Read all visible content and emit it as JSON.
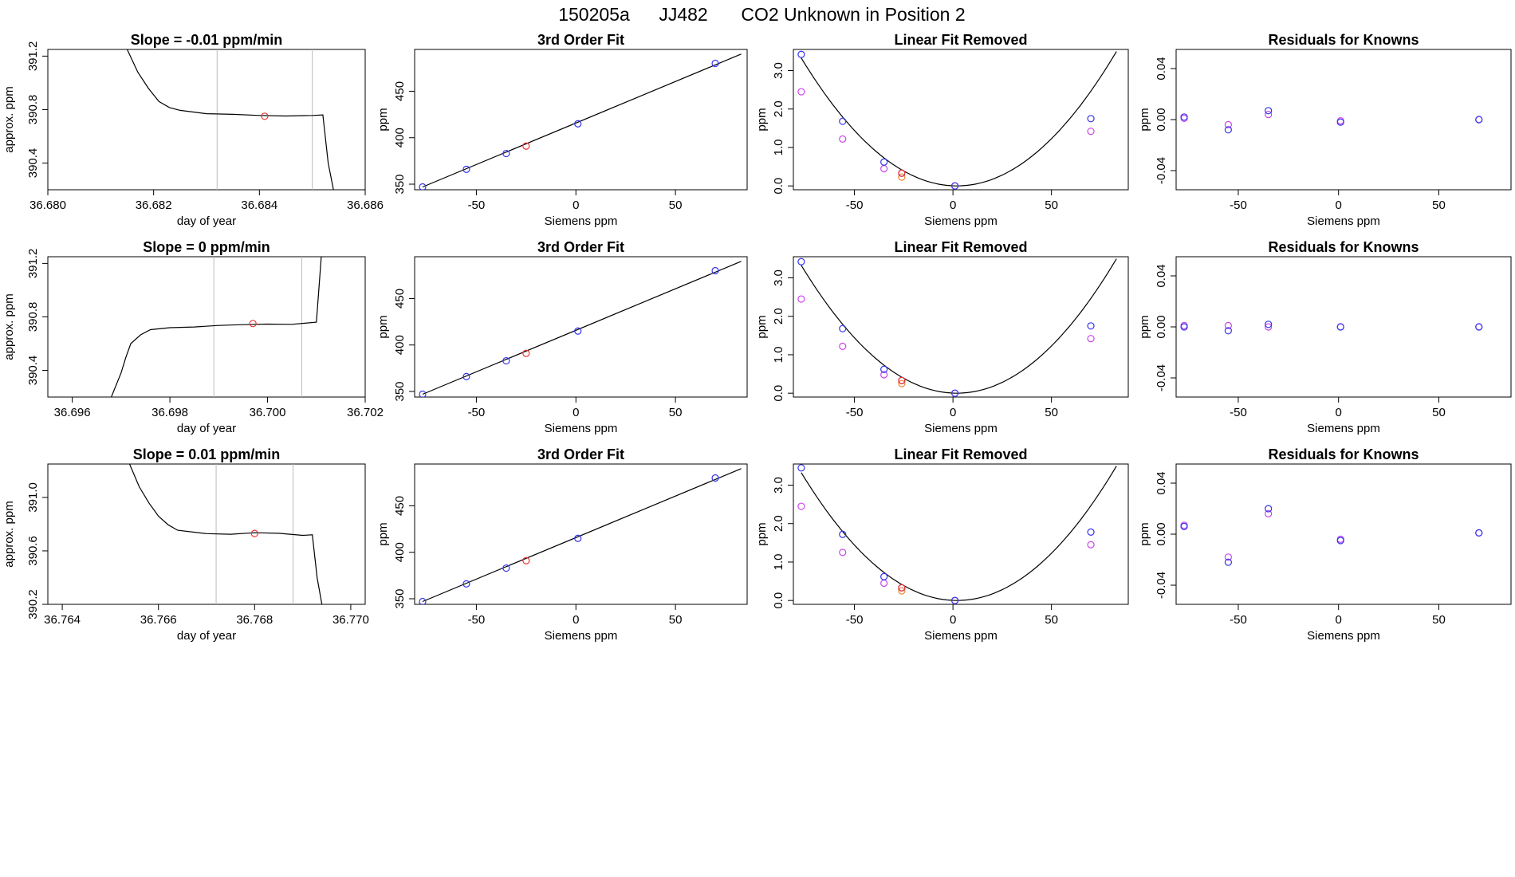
{
  "header": {
    "run_id": "150205a",
    "tank_id": "JJ482",
    "description": "CO2 Unknown in Position  2"
  },
  "colors": {
    "axis": "#000000",
    "curve": "#000000",
    "gridline": "#bbbbbb",
    "known_point": "#3333ee",
    "unknown_point": "#ee3333",
    "alt_known_point": "#cc44ee",
    "alt_unknown_point": "#ee8833"
  },
  "chart_data": [
    {
      "type": "line",
      "title": "Slope =  -0.01  ppm/min",
      "xlabel": "day of year",
      "ylabel": "approx. ppm",
      "xlim": [
        36.68,
        36.686
      ],
      "ylim": [
        390.2,
        391.25
      ],
      "xticks": [
        "36.680",
        "36.682",
        "36.684",
        "36.686"
      ],
      "yticks": [
        "390.4",
        "390.8",
        "391.2"
      ],
      "series": [
        {
          "x": [
            36.6815,
            36.6817,
            36.6819,
            36.6821,
            36.6823,
            36.6825,
            36.683,
            36.6835,
            36.684,
            36.6845,
            36.685,
            36.6852,
            36.6853,
            36.6854
          ],
          "values": [
            391.25,
            391.08,
            390.96,
            390.86,
            390.82,
            390.8,
            390.77,
            390.76,
            390.75,
            390.75,
            390.76,
            390.76,
            390.4,
            390.2
          ]
        }
      ],
      "vlines": [
        36.6832,
        36.685
      ],
      "marker": {
        "x": 36.6841,
        "y": 390.75
      }
    },
    {
      "type": "scatter",
      "title": "3rd Order Fit",
      "xlabel": "Siemens ppm",
      "ylabel": "ppm",
      "xlim": [
        -81,
        86
      ],
      "ylim": [
        344,
        495
      ],
      "xticks": [
        "-50",
        "0",
        "50"
      ],
      "yticks": [
        "350",
        "400",
        "450"
      ],
      "fit_line": {
        "x": [
          -77,
          83
        ],
        "values": [
          347,
          490
        ]
      },
      "known": {
        "x": [
          -77,
          -55,
          -35,
          1,
          70
        ],
        "values": [
          347,
          366,
          383,
          415,
          480
        ]
      },
      "unknown": {
        "x": [
          -25
        ],
        "values": [
          391
        ]
      }
    },
    {
      "type": "scatter",
      "title": "Linear Fit Removed",
      "xlabel": "Siemens ppm",
      "ylabel": "ppm",
      "xlim": [
        -81,
        89
      ],
      "ylim": [
        -0.1,
        3.55
      ],
      "xticks": [
        "-50",
        "0",
        "50"
      ],
      "yticks": [
        "0.0",
        "1.0",
        "2.0",
        "3.0"
      ],
      "fit_curve": {
        "a": 0.000533,
        "h": 2
      },
      "known": {
        "x": [
          -77,
          -56,
          -35,
          -26,
          1,
          70
        ],
        "values": [
          3.42,
          1.68,
          0.62,
          0.33,
          0.0,
          1.75
        ]
      },
      "alt_known": {
        "x": [
          -77,
          -56,
          -35,
          1,
          70
        ],
        "values": [
          2.45,
          1.22,
          0.45,
          0.0,
          1.42
        ]
      },
      "unknown": {
        "x": [
          -26
        ],
        "values": [
          0.33
        ]
      },
      "alt_unknown": {
        "x": [
          -26
        ],
        "values": [
          0.23
        ]
      }
    },
    {
      "type": "scatter",
      "title": "Residuals for Knowns",
      "xlabel": "Siemens ppm",
      "ylabel": "ppm",
      "xlim": [
        -81,
        86
      ],
      "ylim": [
        -0.055,
        0.055
      ],
      "xticks": [
        "-50",
        "0",
        "50"
      ],
      "yticks": [
        "-0.04",
        "0.00",
        "0.04"
      ],
      "known": {
        "x": [
          -77,
          -55,
          -35,
          1,
          70
        ],
        "values": [
          0.002,
          -0.008,
          0.007,
          -0.002,
          0.0
        ]
      },
      "alt_known": {
        "x": [
          -77,
          -55,
          -35,
          1,
          70
        ],
        "values": [
          0.001,
          -0.004,
          0.004,
          -0.001,
          0.0
        ]
      }
    },
    {
      "type": "line",
      "title": "Slope =  0  ppm/min",
      "xlabel": "day of year",
      "ylabel": "approx. ppm",
      "xlim": [
        36.6955,
        36.702
      ],
      "ylim": [
        390.2,
        391.25
      ],
      "xticks": [
        "36.696",
        "36.698",
        "36.700",
        "36.702"
      ],
      "yticks": [
        "390.4",
        "390.8",
        "391.2"
      ],
      "series": [
        {
          "x": [
            36.6968,
            36.697,
            36.6971,
            36.6972,
            36.6974,
            36.6976,
            36.698,
            36.6985,
            36.699,
            36.6995,
            36.7,
            36.7005,
            36.701,
            36.70105,
            36.7011
          ],
          "values": [
            390.2,
            390.38,
            390.5,
            390.6,
            390.67,
            390.71,
            390.72,
            390.72,
            390.73,
            390.74,
            390.75,
            390.75,
            390.76,
            391.0,
            391.25
          ]
        }
      ],
      "vlines": [
        36.6989,
        36.7007
      ],
      "marker": {
        "x": 36.6997,
        "y": 390.75
      }
    },
    {
      "type": "scatter",
      "title": "3rd Order Fit",
      "xlabel": "Siemens ppm",
      "ylabel": "ppm",
      "xlim": [
        -81,
        86
      ],
      "ylim": [
        344,
        495
      ],
      "xticks": [
        "-50",
        "0",
        "50"
      ],
      "yticks": [
        "350",
        "400",
        "450"
      ],
      "fit_line": {
        "x": [
          -77,
          83
        ],
        "values": [
          347,
          490
        ]
      },
      "known": {
        "x": [
          -77,
          -55,
          -35,
          1,
          70
        ],
        "values": [
          347,
          366,
          383,
          415,
          480
        ]
      },
      "unknown": {
        "x": [
          -25
        ],
        "values": [
          391
        ]
      }
    },
    {
      "type": "scatter",
      "title": "Linear Fit Removed",
      "xlabel": "Siemens ppm",
      "ylabel": "ppm",
      "xlim": [
        -81,
        89
      ],
      "ylim": [
        -0.1,
        3.55
      ],
      "xticks": [
        "-50",
        "0",
        "50"
      ],
      "yticks": [
        "0.0",
        "1.0",
        "2.0",
        "3.0"
      ],
      "fit_curve": {
        "a": 0.000533,
        "h": 2
      },
      "known": {
        "x": [
          -77,
          -56,
          -35,
          -26,
          1,
          70
        ],
        "values": [
          3.42,
          1.68,
          0.62,
          0.33,
          0.0,
          1.75
        ]
      },
      "alt_known": {
        "x": [
          -77,
          -56,
          -35,
          1,
          70
        ],
        "values": [
          2.45,
          1.22,
          0.48,
          0.0,
          1.42
        ]
      },
      "unknown": {
        "x": [
          -26
        ],
        "values": [
          0.33
        ]
      },
      "alt_unknown": {
        "x": [
          -26
        ],
        "values": [
          0.25
        ]
      }
    },
    {
      "type": "scatter",
      "title": "Residuals for Knowns",
      "xlabel": "Siemens ppm",
      "ylabel": "ppm",
      "xlim": [
        -81,
        86
      ],
      "ylim": [
        -0.055,
        0.055
      ],
      "xticks": [
        "-50",
        "0",
        "50"
      ],
      "yticks": [
        "-0.04",
        "0.00",
        "0.04"
      ],
      "known": {
        "x": [
          -77,
          -55,
          -35,
          1,
          70
        ],
        "values": [
          0.0,
          -0.003,
          0.002,
          0.0,
          0.0
        ]
      },
      "alt_known": {
        "x": [
          -77,
          -55,
          -35,
          1,
          70
        ],
        "values": [
          0.001,
          0.001,
          0.0,
          0.0,
          0.0
        ]
      }
    },
    {
      "type": "line",
      "title": "Slope =  0.01  ppm/min",
      "xlabel": "day of year",
      "ylabel": "approx. ppm",
      "xlim": [
        36.7637,
        36.7703
      ],
      "ylim": [
        390.2,
        391.25
      ],
      "xticks": [
        "36.764",
        "36.766",
        "36.768",
        "36.770"
      ],
      "yticks": [
        "390.2",
        "390.6",
        "391.0"
      ],
      "series": [
        {
          "x": [
            36.7654,
            36.7656,
            36.7658,
            36.766,
            36.7662,
            36.7664,
            36.767,
            36.7675,
            36.768,
            36.7685,
            36.769,
            36.7692,
            36.7693,
            36.7694
          ],
          "values": [
            391.25,
            391.08,
            390.96,
            390.86,
            390.8,
            390.76,
            390.73,
            390.72,
            390.73,
            390.73,
            390.72,
            390.72,
            390.4,
            390.2
          ]
        }
      ],
      "vlines": [
        36.7672,
        36.7688
      ],
      "marker": {
        "x": 36.768,
        "y": 390.73
      }
    },
    {
      "type": "scatter",
      "title": "3rd Order Fit",
      "xlabel": "Siemens ppm",
      "ylabel": "ppm",
      "xlim": [
        -81,
        86
      ],
      "ylim": [
        344,
        495
      ],
      "xticks": [
        "-50",
        "0",
        "50"
      ],
      "yticks": [
        "350",
        "400",
        "450"
      ],
      "fit_line": {
        "x": [
          -77,
          83
        ],
        "values": [
          347,
          490
        ]
      },
      "known": {
        "x": [
          -77,
          -55,
          -35,
          1,
          70
        ],
        "values": [
          347,
          366,
          383,
          415,
          480
        ]
      },
      "unknown": {
        "x": [
          -25
        ],
        "values": [
          391
        ]
      }
    },
    {
      "type": "scatter",
      "title": "Linear Fit Removed",
      "xlabel": "Siemens ppm",
      "ylabel": "ppm",
      "xlim": [
        -81,
        89
      ],
      "ylim": [
        -0.1,
        3.55
      ],
      "xticks": [
        "-50",
        "0",
        "50"
      ],
      "yticks": [
        "0.0",
        "1.0",
        "2.0",
        "3.0"
      ],
      "fit_curve": {
        "a": 0.000533,
        "h": 2
      },
      "known": {
        "x": [
          -77,
          -56,
          -35,
          -26,
          1,
          70
        ],
        "values": [
          3.45,
          1.72,
          0.62,
          0.33,
          0.0,
          1.78
        ]
      },
      "alt_known": {
        "x": [
          -77,
          -56,
          -35,
          1,
          70
        ],
        "values": [
          2.45,
          1.25,
          0.45,
          0.0,
          1.45
        ]
      },
      "unknown": {
        "x": [
          -26
        ],
        "values": [
          0.33
        ]
      },
      "alt_unknown": {
        "x": [
          -26
        ],
        "values": [
          0.25
        ]
      }
    },
    {
      "type": "scatter",
      "title": "Residuals for Knowns",
      "xlabel": "Siemens ppm",
      "ylabel": "ppm",
      "xlim": [
        -81,
        86
      ],
      "ylim": [
        -0.055,
        0.055
      ],
      "xticks": [
        "-50",
        "0",
        "50"
      ],
      "yticks": [
        "-0.04",
        "0.00",
        "0.04"
      ],
      "known": {
        "x": [
          -77,
          -55,
          -35,
          1,
          70
        ],
        "values": [
          0.006,
          -0.022,
          0.02,
          -0.005,
          0.001
        ]
      },
      "alt_known": {
        "x": [
          -77,
          -55,
          -35,
          1,
          70
        ],
        "values": [
          0.007,
          -0.018,
          0.016,
          -0.004,
          0.001
        ]
      }
    }
  ]
}
